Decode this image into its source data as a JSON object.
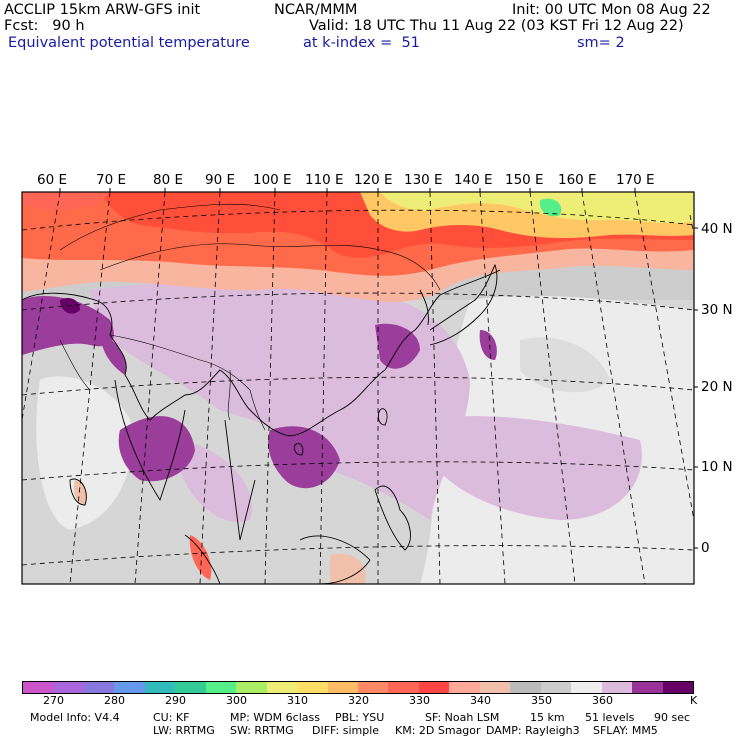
{
  "header": {
    "left1": "ACCLIP 15km ARW-GFS init",
    "center1": "NCAR/MMM",
    "right1": "Init: 00 UTC Mon 08 Aug 22",
    "left2": "Fcst:   90 h",
    "right2": "Valid: 18 UTC Thu 11 Aug 22 (03 KST Fri 12 Aug 22)",
    "field": "Equivalent potential temperature",
    "level": "at k-index =  51",
    "smooth": "sm= 2"
  },
  "map": {
    "lon_labels": [
      "60 E",
      "70 E",
      "80 E",
      "90 E",
      "100 E",
      "110 E",
      "120 E",
      "130 E",
      "140 E",
      "150 E",
      "160 E",
      "170 E"
    ],
    "lat_labels": [
      "40 N",
      "30 N",
      "20 N",
      "10 N",
      "0"
    ]
  },
  "colorbar": {
    "colors": [
      "#cc55cc",
      "#aa66dd",
      "#8877dd",
      "#6699ee",
      "#33bbbb",
      "#33cc99",
      "#55ee88",
      "#aaee66",
      "#eeee77",
      "#ffdd66",
      "#ffbb66",
      "#ff8866",
      "#ff6655",
      "#ff4444",
      "#ffaa99",
      "#f0c0aa",
      "#bbbbbb",
      "#cccccc",
      "#eeeeee",
      "#ddbbdd",
      "#993399",
      "#660066"
    ],
    "tick_labels": [
      "270",
      "280",
      "290",
      "300",
      "310",
      "320",
      "330",
      "340",
      "350",
      "360"
    ],
    "unit": "K"
  },
  "footer": {
    "line1": [
      "Model Info: V4.4",
      "CU: KF",
      "MP: WDM 6class",
      "PBL: YSU",
      "SF: Noah LSM",
      "15 km",
      "51 levels",
      "90 sec"
    ],
    "line2": [
      "LW: RRTMG",
      "SW: RRTMG",
      "DIFF: simple",
      "KM: 2D Smagor",
      "DAMP: Rayleigh3",
      "SFLAY: MM5"
    ]
  }
}
